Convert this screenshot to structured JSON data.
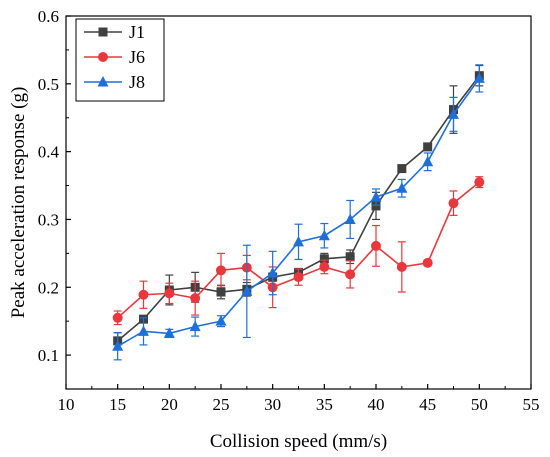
{
  "chart_data": {
    "type": "line",
    "xlabel": "Collision speed (mm/s)",
    "ylabel": "Peak acceleration response (g)",
    "xlim": [
      10,
      55
    ],
    "ylim": [
      0.05,
      0.6
    ],
    "xticks": [
      "10",
      "15",
      "20",
      "25",
      "30",
      "35",
      "40",
      "45",
      "50",
      "55"
    ],
    "yticks": [
      "0.1",
      "0.2",
      "0.3",
      "0.4",
      "0.5",
      "0.6"
    ],
    "legend_position": "top-left",
    "error_bars": true,
    "series": [
      {
        "name": "J1",
        "color": "#404040",
        "marker": "square",
        "x": [
          15,
          17.5,
          20,
          22.5,
          25,
          27.5,
          30,
          32.5,
          35,
          37.5,
          40,
          42.5,
          45,
          47.5,
          50
        ],
        "values": [
          0.121,
          0.153,
          0.196,
          0.2,
          0.193,
          0.197,
          0.215,
          0.222,
          0.242,
          0.245,
          0.32,
          0.375,
          0.407,
          0.462,
          0.512
        ],
        "errors": [
          0.012,
          0.005,
          0.022,
          0.022,
          0.01,
          0.01,
          0.006,
          0.005,
          0.008,
          0.01,
          0.02,
          0.005,
          0.005,
          0.035,
          0.015
        ]
      },
      {
        "name": "J6",
        "color": "#e8383d",
        "marker": "circle",
        "x": [
          15,
          17.5,
          20,
          22.5,
          25,
          27.5,
          30,
          32.5,
          35,
          37.5,
          40,
          42.5,
          45,
          47.5,
          50
        ],
        "values": [
          0.155,
          0.189,
          0.191,
          0.184,
          0.225,
          0.229,
          0.2,
          0.215,
          0.23,
          0.219,
          0.261,
          0.23,
          0.236,
          0.324,
          0.355
        ],
        "errors": [
          0.01,
          0.02,
          0.015,
          0.025,
          0.025,
          0.018,
          0.03,
          0.012,
          0.01,
          0.02,
          0.03,
          0.037,
          0.004,
          0.018,
          0.008
        ]
      },
      {
        "name": "J8",
        "color": "#1f6fdb",
        "marker": "triangle",
        "x": [
          15,
          17.5,
          20,
          22.5,
          25,
          27.5,
          30,
          32.5,
          35,
          37.5,
          40,
          42.5,
          45,
          47.5,
          50
        ],
        "values": [
          0.113,
          0.135,
          0.132,
          0.142,
          0.15,
          0.194,
          0.221,
          0.267,
          0.276,
          0.3,
          0.333,
          0.346,
          0.385,
          0.455,
          0.508
        ],
        "errors": [
          0.02,
          0.02,
          0.006,
          0.014,
          0.008,
          0.068,
          0.032,
          0.026,
          0.018,
          0.028,
          0.012,
          0.013,
          0.013,
          0.025,
          0.02
        ]
      }
    ]
  }
}
